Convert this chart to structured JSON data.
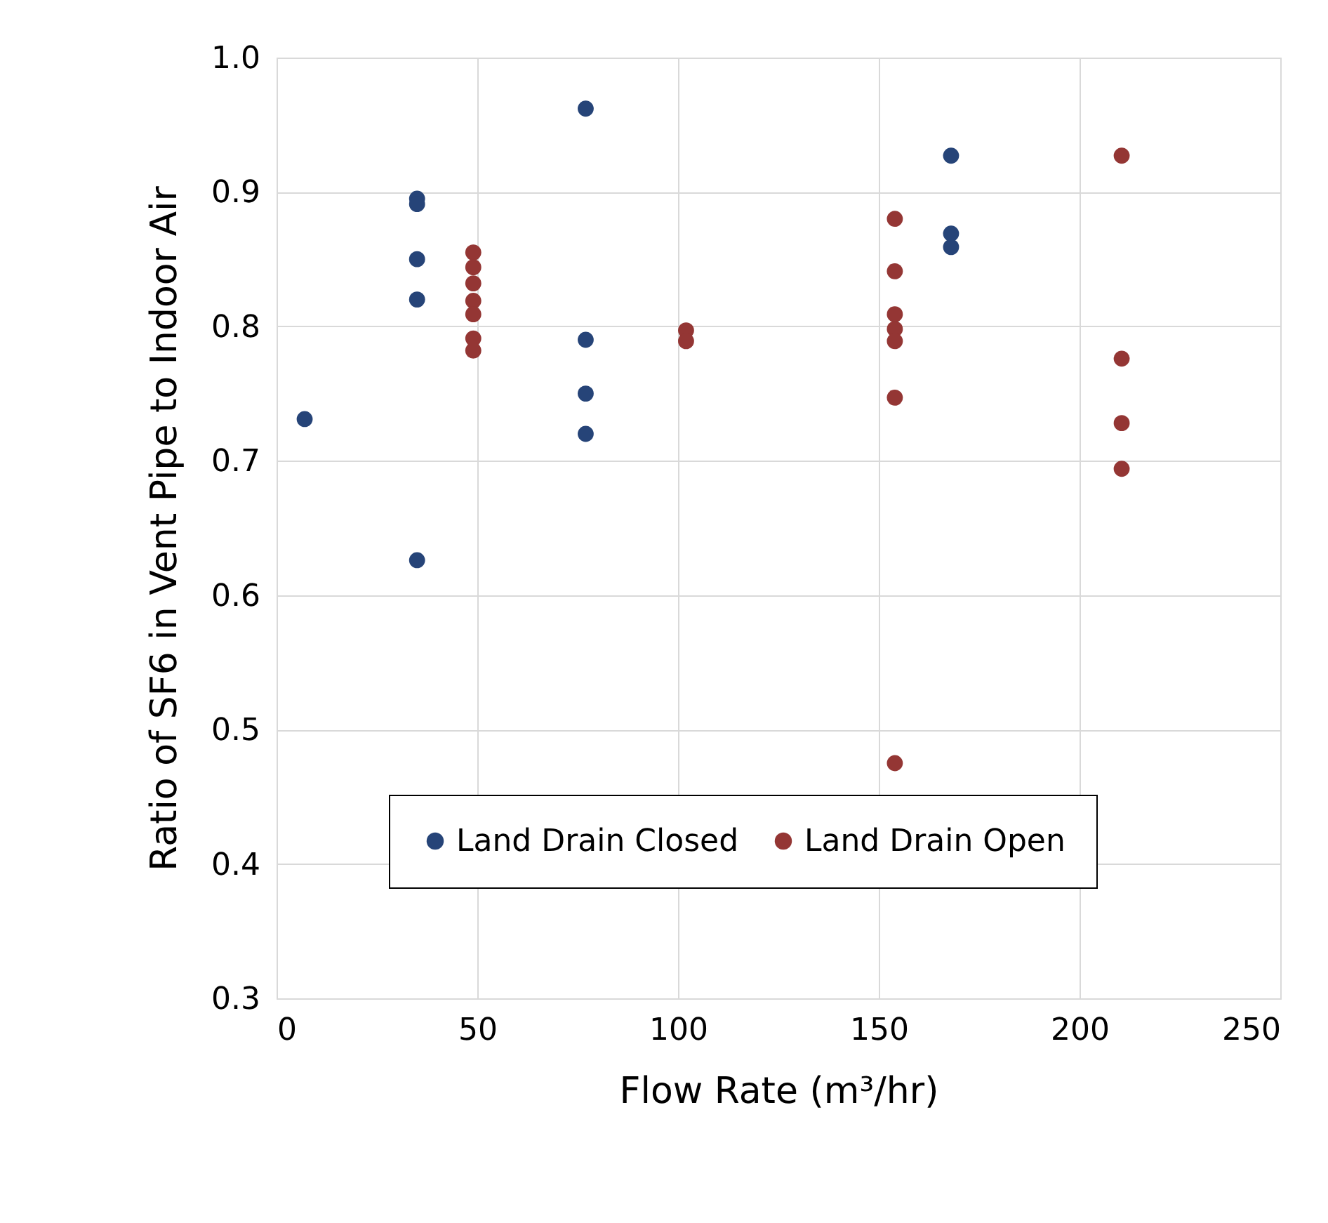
{
  "chart_data": {
    "type": "scatter",
    "xlabel": "Flow Rate (m³/hr)",
    "ylabel": "Ratio of SF6 in Vent Pipe to Indoor Air",
    "xlim": [
      0,
      250
    ],
    "xticks": [
      0,
      50,
      100,
      150,
      200,
      250
    ],
    "ylim": [
      0.3,
      1.0
    ],
    "yticks": [
      {
        "value": 0.3,
        "label": "0.3"
      },
      {
        "value": 0.4,
        "label": "0.4"
      },
      {
        "value": 0.5,
        "label": "0.5"
      },
      {
        "value": 0.6,
        "label": "0.6"
      },
      {
        "value": 0.7,
        "label": "0.7"
      },
      {
        "value": 0.8,
        "label": "0.8"
      },
      {
        "value": 0.9,
        "label": "0.9"
      },
      {
        "value": 1.0,
        "label": "1.0"
      }
    ],
    "grid": true,
    "legend": "bottom",
    "marker": "circle",
    "series": [
      {
        "name": "Land Drain Closed",
        "color": "#264478",
        "x": [
          7,
          35,
          35,
          35,
          35,
          35,
          77,
          77,
          77,
          77,
          168,
          168,
          168
        ],
        "values": [
          0.731,
          0.895,
          0.891,
          0.85,
          0.82,
          0.626,
          0.962,
          0.79,
          0.75,
          0.72,
          0.927,
          0.869,
          0.859
        ]
      },
      {
        "name": "Land Drain Open",
        "color": "#943634",
        "x": [
          49,
          49,
          49,
          49,
          49,
          49,
          49,
          102,
          102,
          154,
          154,
          154,
          154,
          154,
          154,
          154,
          210.5,
          210.5,
          210.5,
          210.5
        ],
        "values": [
          0.855,
          0.844,
          0.832,
          0.819,
          0.809,
          0.791,
          0.782,
          0.797,
          0.789,
          0.88,
          0.841,
          0.809,
          0.798,
          0.789,
          0.747,
          0.475,
          0.927,
          0.776,
          0.728,
          0.694
        ]
      }
    ]
  }
}
